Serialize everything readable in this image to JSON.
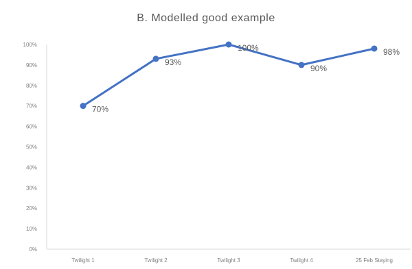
{
  "chart_data": {
    "type": "line",
    "title": "B. Modelled good example",
    "xlabel": "",
    "ylabel": "",
    "categories": [
      "Twilight 1",
      "Twilight 2",
      "Twilight 3",
      "Twilight 4",
      "25 Feb Staying"
    ],
    "series": [
      {
        "values": [
          70,
          93,
          100,
          90,
          98
        ],
        "color": "#4472c4"
      }
    ],
    "data_labels": [
      "70%",
      "93%",
      "100%",
      "90%",
      "98%"
    ],
    "y_ticks": [
      "0%",
      "10%",
      "20%",
      "30%",
      "40%",
      "50%",
      "60%",
      "70%",
      "80%",
      "90%",
      "100%"
    ],
    "ylim": [
      0,
      100
    ],
    "grid": false,
    "legend": "none"
  }
}
